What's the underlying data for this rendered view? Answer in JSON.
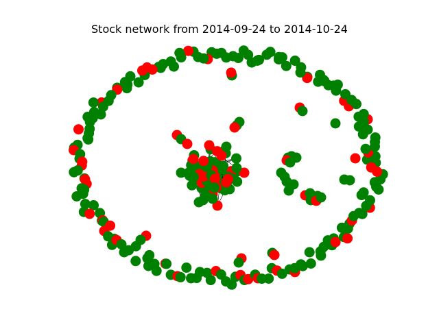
{
  "title": "Stock network from 2014-09-24 to 2014-10-24",
  "colors": {
    "up_node": "#008000",
    "down_node": "#ff0000",
    "edge": "#000000",
    "background": "#ffffff"
  },
  "chart_data": {
    "type": "network",
    "title": "Stock network from 2014-09-24 to 2014-10-24",
    "axes_visible": false,
    "node_categories": [
      "green",
      "red"
    ],
    "approx_node_counts": {
      "green": 250,
      "red": 65
    },
    "structure": "outer ring of mostly unconnected nodes, one dense central cluster, and a few small clusters on the right"
  }
}
